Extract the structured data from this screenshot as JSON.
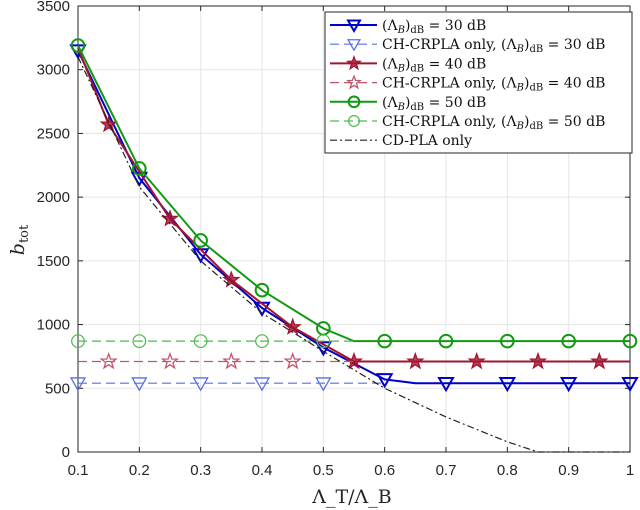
{
  "chart_data": {
    "type": "line",
    "title": "",
    "xlabel": "Λ_T/Λ_B",
    "xlabel_main": "Λ",
    "xlabel_sub1": "T",
    "xlabel_mid": "/Λ",
    "xlabel_sub2": "B",
    "ylabel": "b_tot",
    "ylabel_main": "b",
    "ylabel_sub": "tot",
    "xlim": [
      0.1,
      1
    ],
    "ylim": [
      0,
      3500
    ],
    "grid": true,
    "legend_position": "top-right",
    "xticks": [
      "0.1",
      "0.2",
      "0.3",
      "0.4",
      "0.5",
      "0.6",
      "0.7",
      "0.8",
      "0.9",
      "1"
    ],
    "yticks": [
      "0",
      "500",
      "1000",
      "1500",
      "2000",
      "2500",
      "3000",
      "3500"
    ],
    "series": [
      {
        "name": "(Λ_B)dB = 30 dB",
        "legend_main": "(Λ",
        "legend_sub": "B",
        "legend_tail": ")",
        "legend_sub2": "dB",
        "legend_end": " = 30 dB",
        "color": "#0000cc",
        "style": "solid",
        "marker": "triangle-down",
        "x": [
          0.1,
          0.2,
          0.3,
          0.4,
          0.5,
          0.6,
          0.65,
          0.7,
          0.8,
          0.9,
          1.0
        ],
        "y": [
          3150,
          2150,
          1550,
          1130,
          820,
          570,
          540,
          540,
          540,
          540,
          540
        ],
        "marker_x": [
          0.1,
          0.2,
          0.3,
          0.4,
          0.5,
          0.6,
          0.7,
          0.8,
          0.9,
          1.0
        ]
      },
      {
        "name": "CH-CRPLA only, (Λ_B)dB = 30 dB",
        "legend_main": "CH-CRPLA only, (Λ",
        "legend_sub": "B",
        "legend_tail": ")",
        "legend_sub2": "dB",
        "legend_end": " = 30 dB",
        "color": "#5a6ee6",
        "style": "dashed",
        "marker": "triangle-down-open",
        "x": [
          0.1,
          0.6
        ],
        "y": [
          540,
          540
        ],
        "marker_x": [
          0.1,
          0.2,
          0.3,
          0.4,
          0.5
        ]
      },
      {
        "name": "(Λ_B)dB = 40 dB",
        "legend_main": "(Λ",
        "legend_sub": "B",
        "legend_tail": ")",
        "legend_sub2": "dB",
        "legend_end": " = 40 dB",
        "color": "#a2142f",
        "style": "solid",
        "marker": "star",
        "x": [
          0.1,
          0.15,
          0.25,
          0.35,
          0.45,
          0.55,
          0.65,
          0.75,
          0.85,
          0.95,
          1.0
        ],
        "y": [
          3170,
          2570,
          1830,
          1350,
          980,
          710,
          710,
          710,
          710,
          710,
          710
        ],
        "marker_x": [
          0.15,
          0.25,
          0.35,
          0.45,
          0.55,
          0.65,
          0.75,
          0.85,
          0.95
        ]
      },
      {
        "name": "CH-CRPLA only, (Λ_B)dB = 40 dB",
        "legend_main": "CH-CRPLA only, (Λ",
        "legend_sub": "B",
        "legend_tail": ")",
        "legend_sub2": "dB",
        "legend_end": " = 40 dB",
        "color": "#c0566b",
        "style": "dashed",
        "marker": "star-open",
        "x": [
          0.1,
          0.55
        ],
        "y": [
          710,
          710
        ],
        "marker_x": [
          0.15,
          0.25,
          0.35,
          0.45
        ]
      },
      {
        "name": "(Λ_B)dB = 50 dB",
        "legend_main": "(Λ",
        "legend_sub": "B",
        "legend_tail": ")",
        "legend_sub2": "dB",
        "legend_end": " = 50 dB",
        "color": "#119911",
        "style": "solid",
        "marker": "circle",
        "x": [
          0.1,
          0.2,
          0.3,
          0.4,
          0.5,
          0.55,
          0.6,
          0.7,
          0.8,
          0.9,
          1.0
        ],
        "y": [
          3190,
          2225,
          1660,
          1270,
          970,
          870,
          870,
          870,
          870,
          870,
          870
        ],
        "marker_x": [
          0.1,
          0.2,
          0.3,
          0.4,
          0.5,
          0.6,
          0.7,
          0.8,
          0.9,
          1.0
        ]
      },
      {
        "name": "CH-CRPLA only, (Λ_B)dB = 50 dB",
        "legend_main": "CH-CRPLA only, (Λ",
        "legend_sub": "B",
        "legend_tail": ")",
        "legend_sub2": "dB",
        "legend_end": " = 50 dB",
        "color": "#4cbb4c",
        "style": "dashed",
        "marker": "circle-line",
        "x": [
          0.1,
          0.55
        ],
        "y": [
          870,
          870
        ],
        "marker_x": [
          0.1,
          0.2,
          0.3,
          0.4,
          0.5
        ]
      },
      {
        "name": "CD-PLA only",
        "legend_main": "CD-PLA only",
        "legend_sub": "",
        "legend_tail": "",
        "legend_sub2": "",
        "legend_end": "",
        "color": "#222222",
        "style": "dashdot",
        "marker": "none",
        "x": [
          0.1,
          0.2,
          0.3,
          0.4,
          0.5,
          0.6,
          0.7,
          0.8,
          0.85,
          0.9,
          1.0
        ],
        "y": [
          3100,
          2080,
          1500,
          1090,
          790,
          500,
          275,
          80,
          0,
          0,
          0
        ],
        "marker_x": []
      }
    ]
  }
}
